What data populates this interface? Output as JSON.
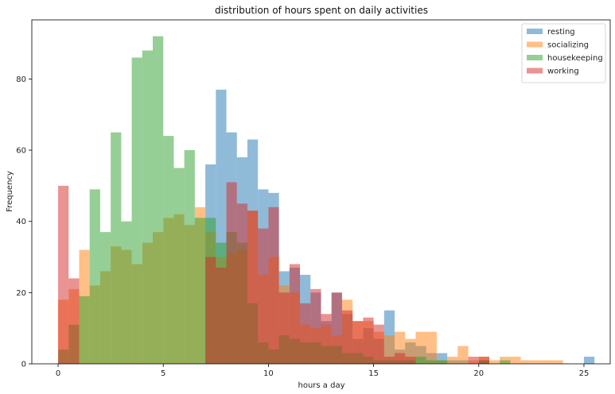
{
  "chart_data": {
    "type": "histogram",
    "title": "distribution of hours spent on daily activities",
    "xlabel": "hours a day",
    "ylabel": "Frequency",
    "xlim": [
      -1.25,
      26.25
    ],
    "ylim": [
      0,
      96.6
    ],
    "xticks": [
      0,
      5,
      10,
      15,
      20,
      25
    ],
    "yticks": [
      0,
      20,
      40,
      60,
      80
    ],
    "bin_width": 0.5,
    "bar_alpha": 0.5,
    "legend_position": "top-right",
    "grid": false,
    "series": [
      {
        "name": "resting",
        "color": "#1f77b4",
        "bins_start": 7.0,
        "counts": [
          56,
          77,
          65,
          58,
          63,
          49,
          48,
          26,
          27,
          25,
          20,
          12,
          20,
          14,
          7,
          10,
          7,
          15,
          4,
          6,
          5,
          3,
          3,
          1,
          1,
          0,
          1,
          0,
          0,
          0,
          0,
          0,
          0,
          0,
          0,
          0,
          2
        ]
      },
      {
        "name": "socializing",
        "color": "#ff7f0e",
        "bins_start": 0.0,
        "counts": [
          18,
          21,
          32,
          22,
          26,
          33,
          32,
          28,
          34,
          37,
          41,
          42,
          39,
          44,
          37,
          30,
          31,
          32,
          43,
          25,
          30,
          22,
          20,
          11,
          10,
          11,
          8,
          18,
          12,
          12,
          9,
          8,
          9,
          7,
          9,
          9,
          1,
          2,
          5,
          1,
          2,
          1,
          2,
          2,
          1,
          1,
          1,
          1
        ]
      },
      {
        "name": "housekeeping",
        "color": "#2ca02c",
        "bins_start": 0.0,
        "counts": [
          4,
          11,
          19,
          49,
          37,
          65,
          40,
          86,
          88,
          92,
          64,
          55,
          60,
          41,
          41,
          34,
          37,
          34,
          17,
          6,
          4,
          8,
          7,
          6,
          6,
          5,
          5,
          3,
          3,
          2,
          1,
          1,
          1,
          1,
          2,
          1,
          1,
          0,
          0,
          0,
          1,
          0,
          1
        ]
      },
      {
        "name": "working",
        "color": "#d62728",
        "bins_start": 0.0,
        "counts": [
          50,
          24,
          0,
          0,
          0,
          0,
          0,
          0,
          0,
          0,
          0,
          0,
          0,
          0,
          30,
          27,
          51,
          45,
          43,
          38,
          44,
          20,
          28,
          17,
          21,
          14,
          20,
          15,
          12,
          13,
          11,
          2,
          3,
          2,
          0,
          0,
          0,
          0,
          0,
          2,
          2
        ]
      }
    ]
  }
}
